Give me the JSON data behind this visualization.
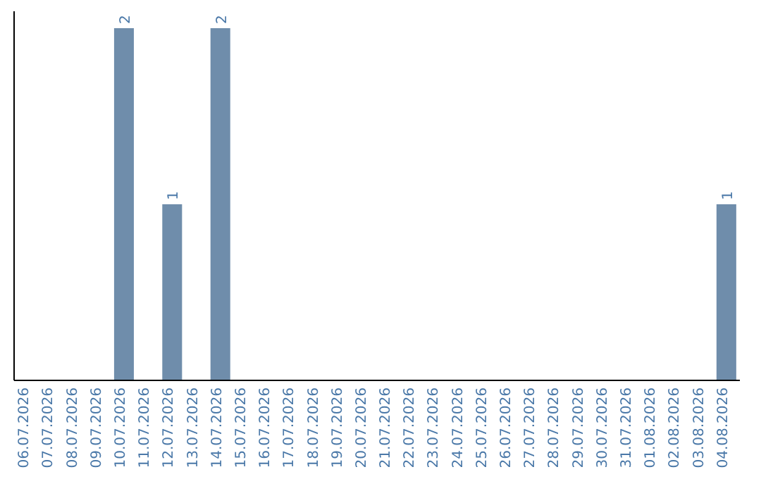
{
  "chart_data": {
    "type": "bar",
    "categories": [
      "06.07.2026",
      "07.07.2026",
      "08.07.2026",
      "09.07.2026",
      "10.07.2026",
      "11.07.2026",
      "12.07.2026",
      "13.07.2026",
      "14.07.2026",
      "15.07.2026",
      "16.07.2026",
      "17.07.2026",
      "18.07.2026",
      "19.07.2026",
      "20.07.2026",
      "21.07.2026",
      "22.07.2026",
      "23.07.2026",
      "24.07.2026",
      "25.07.2026",
      "26.07.2026",
      "27.07.2026",
      "28.07.2026",
      "29.07.2026",
      "30.07.2026",
      "31.07.2026",
      "01.08.2026",
      "02.08.2026",
      "03.08.2026",
      "04.08.2026"
    ],
    "values": [
      0,
      0,
      0,
      0,
      2,
      0,
      1,
      0,
      2,
      0,
      0,
      0,
      0,
      0,
      0,
      0,
      0,
      0,
      0,
      0,
      0,
      0,
      0,
      0,
      0,
      0,
      0,
      0,
      0,
      1
    ],
    "value_labels": [
      null,
      null,
      null,
      null,
      "2",
      null,
      "1",
      null,
      "2",
      null,
      null,
      null,
      null,
      null,
      null,
      null,
      null,
      null,
      null,
      null,
      null,
      null,
      null,
      null,
      null,
      null,
      null,
      null,
      null,
      "1"
    ],
    "color": "#6f8dab"
  }
}
